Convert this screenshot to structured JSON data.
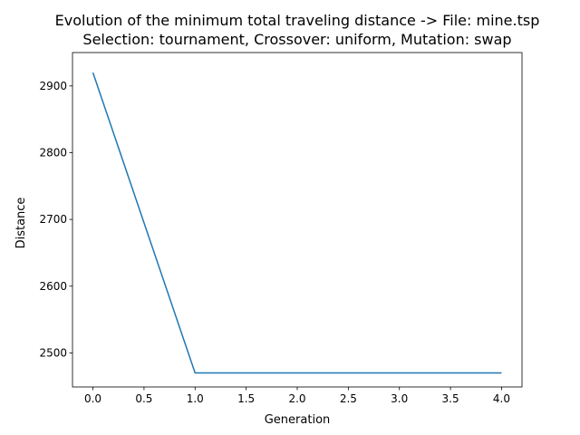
{
  "chart_data": {
    "type": "line",
    "title_line1": "Evolution of the minimum total traveling distance -> File: mine.tsp",
    "title_line2": "Selection: tournament, Crossover: uniform, Mutation: swap",
    "xlabel": "Generation",
    "ylabel": "Distance",
    "xlim": [
      -0.2,
      4.2
    ],
    "ylim": [
      2449,
      2950
    ],
    "xticks": [
      0.0,
      0.5,
      1.0,
      1.5,
      2.0,
      2.5,
      3.0,
      3.5,
      4.0
    ],
    "xtick_labels": [
      "0.0",
      "0.5",
      "1.0",
      "1.5",
      "2.0",
      "2.5",
      "3.0",
      "3.5",
      "4.0"
    ],
    "yticks": [
      2500,
      2600,
      2700,
      2800,
      2900
    ],
    "ytick_labels": [
      "2500",
      "2600",
      "2700",
      "2800",
      "2900"
    ],
    "grid": false,
    "series": [
      {
        "x": [
          0,
          1,
          2,
          3,
          4
        ],
        "values": [
          2920,
          2470,
          2470,
          2470,
          2470
        ],
        "color": "#1f77b4"
      }
    ]
  }
}
